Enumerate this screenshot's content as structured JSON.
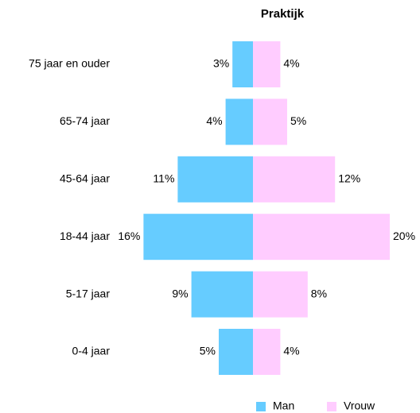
{
  "chart_data": {
    "type": "pyramid",
    "title": "Praktijk",
    "categories": [
      "75 jaar en ouder",
      "65-74 jaar",
      "45-64 jaar",
      "18-44 jaar",
      "5-17 jaar",
      "0-4 jaar"
    ],
    "series": [
      {
        "name": "Man",
        "color": "#66ccff",
        "values": [
          3,
          4,
          11,
          16,
          9,
          5
        ],
        "value_labels": [
          "3%",
          "4%",
          "11%",
          "16%",
          "9%",
          "5%"
        ]
      },
      {
        "name": "Vrouw",
        "color": "#ffccff",
        "values": [
          4,
          5,
          12,
          20,
          8,
          4
        ],
        "value_labels": [
          "4%",
          "5%",
          "12%",
          "20%",
          "8%",
          "4%"
        ]
      }
    ]
  }
}
